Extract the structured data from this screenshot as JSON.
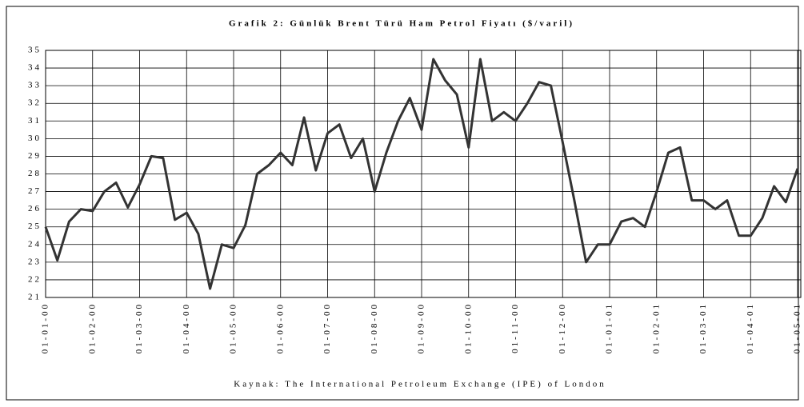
{
  "chart_data": {
    "type": "line",
    "title": "Grafik 2: Günlük Brent Türü Ham Petrol Fiyatı ($/varil)",
    "source": "Kaynak: The International Petroleum Exchange (IPE) of London",
    "categories": [
      "01-01-00",
      null,
      null,
      null,
      "01-02-00",
      null,
      null,
      null,
      "01-03-00",
      null,
      null,
      null,
      "01-04-00",
      null,
      null,
      null,
      "01-05-00",
      null,
      null,
      null,
      "01-06-00",
      null,
      null,
      null,
      "01-07-00",
      null,
      null,
      null,
      "01-08-00",
      null,
      null,
      null,
      "01-09-00",
      null,
      null,
      null,
      "01-10-00",
      null,
      null,
      null,
      "01-11-00",
      null,
      null,
      null,
      "01-12-00",
      null,
      null,
      null,
      "01-01-01",
      null,
      null,
      null,
      "01-02-01",
      null,
      null,
      null,
      "01-03-01",
      null,
      null,
      null,
      "01-04-01",
      null,
      null,
      null,
      "01-05-01"
    ],
    "values": [
      25.0,
      23.1,
      25.3,
      26.0,
      25.9,
      27.0,
      27.5,
      26.1,
      27.4,
      29.0,
      28.9,
      25.4,
      25.8,
      24.6,
      21.5,
      24.0,
      23.8,
      25.1,
      28.0,
      28.5,
      29.2,
      28.5,
      31.2,
      28.2,
      30.3,
      30.8,
      28.9,
      30.0,
      27.0,
      29.2,
      31.0,
      32.3,
      30.5,
      34.5,
      33.3,
      32.5,
      29.5,
      34.5,
      31.0,
      31.5,
      31.0,
      32.0,
      33.2,
      33.0,
      29.8,
      26.5,
      23.0,
      24.0,
      24.0,
      25.3,
      25.5,
      25.0,
      27.0,
      29.2,
      29.5,
      26.5,
      26.5,
      26.0,
      26.5,
      24.5,
      24.5,
      25.5,
      27.3,
      26.4,
      28.3
    ],
    "color": "#333333",
    "ylim": [
      21,
      35
    ],
    "yticks": [
      21,
      22,
      23,
      24,
      25,
      26,
      27,
      28,
      29,
      30,
      31,
      32,
      33,
      34,
      35
    ],
    "grid": true
  }
}
